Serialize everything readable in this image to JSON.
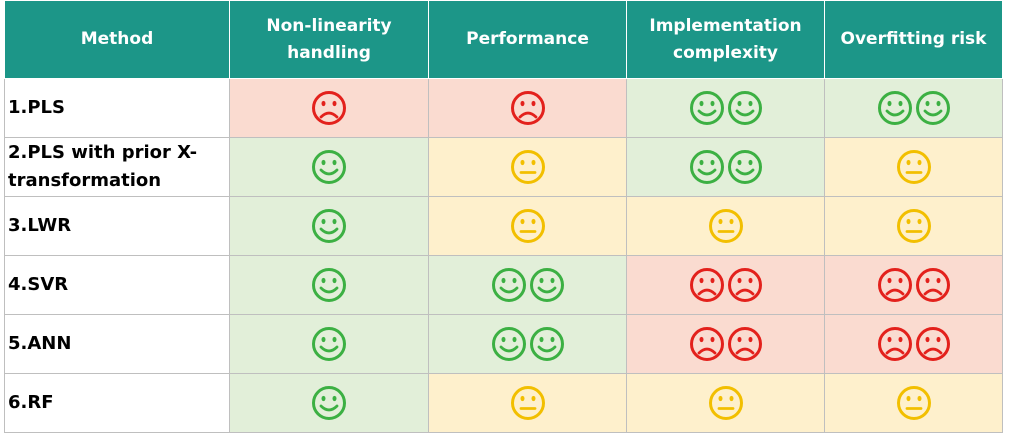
{
  "table": {
    "header": [
      "Method",
      "Non-linearity handling",
      "Performance",
      "Implementation complexity",
      "Overfitting risk"
    ],
    "rows": [
      [
        "1.PLS"
      ],
      [
        "2.PLS with prior X-transformation"
      ],
      [
        "3.LWR"
      ],
      [
        "4.SVR"
      ],
      [
        "5.ANN"
      ],
      [
        "6.RF"
      ]
    ]
  }
}
